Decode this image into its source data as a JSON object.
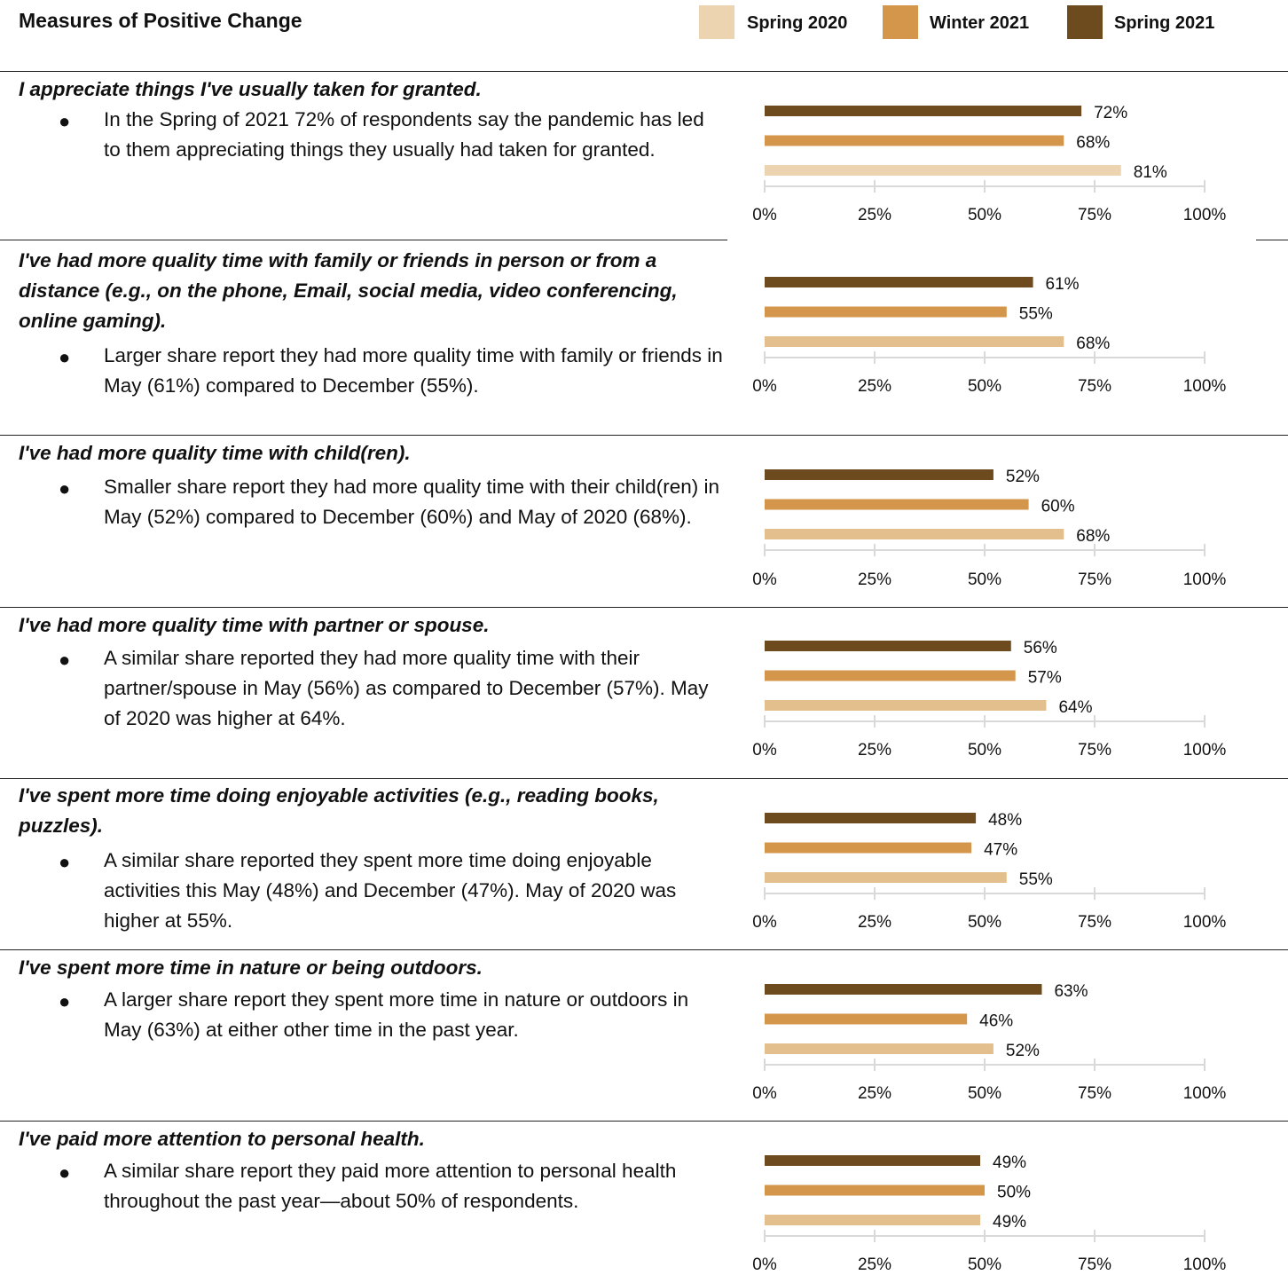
{
  "title": "Measures of Positive Change",
  "legend": [
    {
      "label": "Spring 2020",
      "color": "#ecd4b0"
    },
    {
      "label": "Winter 2021",
      "color": "#d4964a"
    },
    {
      "label": "Spring 2021",
      "color": "#6e4a1f"
    }
  ],
  "sections": [
    {
      "question": "I appreciate things I've usually taken for granted.",
      "description": "In the Spring of 2021 72% of respondents say the pandemic has led to them appreciating things they usually had taken for granted."
    },
    {
      "question": "I've had more quality time with family or friends in person or from a distance (e.g., on the phone, Email, social media, video conferencing, online gaming).",
      "description": "Larger share report they had more quality time with family or friends in May (61%) compared to December (55%)."
    },
    {
      "question": "I've had more quality time with child(ren).",
      "description": "Smaller share report they had more quality time with their child(ren) in May (52%) compared to December (60%) and May of 2020 (68%)."
    },
    {
      "question": "I've had more quality time with partner or spouse.",
      "description": "A similar share reported they had more quality time with their partner/spouse in May (56%) as compared to December (57%). May of 2020 was higher at 64%."
    },
    {
      "question": "I've spent more time doing enjoyable activities (e.g., reading books, puzzles).",
      "description": "A similar share reported they spent more time doing enjoyable activities this May (48%) and December (47%). May of 2020 was higher at 55%."
    },
    {
      "question": "I've spent more time in nature or being outdoors.",
      "description": "A larger share report they spent more time in nature or outdoors in May (63%) at either other time in the past year."
    },
    {
      "question": "I've paid more attention to personal health.",
      "description": "A similar share report they paid more attention to personal health throughout the past year—about 50% of respondents."
    }
  ],
  "chart_data": [
    {
      "type": "bar",
      "orientation": "horizontal",
      "series": [
        {
          "name": "Spring 2021",
          "values": [
            72
          ]
        },
        {
          "name": "Winter 2021",
          "values": [
            68
          ]
        },
        {
          "name": "Spring 2020",
          "values": [
            81
          ]
        }
      ],
      "xlim": [
        0,
        100
      ],
      "ticks": [
        "0%",
        "25%",
        "50%",
        "75%",
        "100%"
      ],
      "data_labels": [
        "72%",
        "68%",
        "81%"
      ]
    },
    {
      "type": "bar",
      "orientation": "horizontal",
      "series": [
        {
          "name": "Spring 2021",
          "values": [
            61
          ]
        },
        {
          "name": "Winter 2021",
          "values": [
            55
          ]
        },
        {
          "name": "Spring 2020",
          "values": [
            68
          ]
        }
      ],
      "xlim": [
        0,
        100
      ],
      "ticks": [
        "0%",
        "25%",
        "50%",
        "75%",
        "100%"
      ],
      "data_labels": [
        "61%",
        "55%",
        "68%"
      ]
    },
    {
      "type": "bar",
      "orientation": "horizontal",
      "series": [
        {
          "name": "Spring 2021",
          "values": [
            52
          ]
        },
        {
          "name": "Winter 2021",
          "values": [
            60
          ]
        },
        {
          "name": "Spring 2020",
          "values": [
            68
          ]
        }
      ],
      "xlim": [
        0,
        100
      ],
      "ticks": [
        "0%",
        "25%",
        "50%",
        "75%",
        "100%"
      ],
      "data_labels": [
        "52%",
        "60%",
        "68%"
      ]
    },
    {
      "type": "bar",
      "orientation": "horizontal",
      "series": [
        {
          "name": "Spring 2021",
          "values": [
            56
          ]
        },
        {
          "name": "Winter 2021",
          "values": [
            57
          ]
        },
        {
          "name": "Spring 2020",
          "values": [
            64
          ]
        }
      ],
      "xlim": [
        0,
        100
      ],
      "ticks": [
        "0%",
        "25%",
        "50%",
        "75%",
        "100%"
      ],
      "data_labels": [
        "56%",
        "57%",
        "64%"
      ]
    },
    {
      "type": "bar",
      "orientation": "horizontal",
      "series": [
        {
          "name": "Spring 2021",
          "values": [
            48
          ]
        },
        {
          "name": "Winter 2021",
          "values": [
            47
          ]
        },
        {
          "name": "Spring 2020",
          "values": [
            55
          ]
        }
      ],
      "xlim": [
        0,
        100
      ],
      "ticks": [
        "0%",
        "25%",
        "50%",
        "75%",
        "100%"
      ],
      "data_labels": [
        "48%",
        "47%",
        "55%"
      ]
    },
    {
      "type": "bar",
      "orientation": "horizontal",
      "series": [
        {
          "name": "Spring 2021",
          "values": [
            63
          ]
        },
        {
          "name": "Winter 2021",
          "values": [
            46
          ]
        },
        {
          "name": "Spring 2020",
          "values": [
            52
          ]
        }
      ],
      "xlim": [
        0,
        100
      ],
      "ticks": [
        "0%",
        "25%",
        "50%",
        "75%",
        "100%"
      ],
      "data_labels": [
        "63%",
        "46%",
        "52%"
      ]
    },
    {
      "type": "bar",
      "orientation": "horizontal",
      "series": [
        {
          "name": "Spring 2021",
          "values": [
            49
          ]
        },
        {
          "name": "Winter 2021",
          "values": [
            50
          ]
        },
        {
          "name": "Spring 2020",
          "values": [
            49
          ]
        }
      ],
      "xlim": [
        0,
        100
      ],
      "ticks": [
        "0%",
        "25%",
        "50%",
        "75%",
        "100%"
      ],
      "data_labels": [
        "49%",
        "50%",
        "49%"
      ]
    }
  ]
}
